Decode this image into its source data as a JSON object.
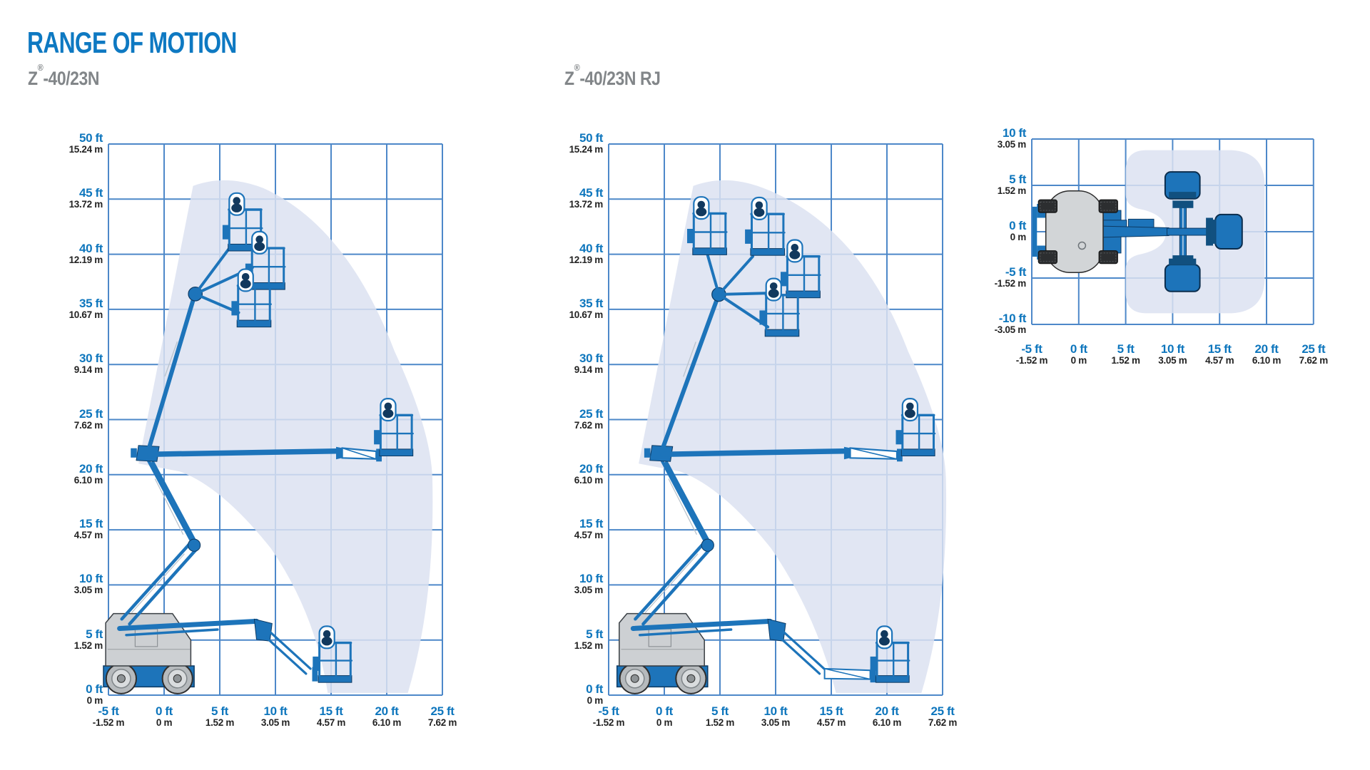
{
  "page": {
    "title": "RANGE OF MOTION"
  },
  "colors": {
    "heading_blue": "#0e79c2",
    "label_blue": "#0e76bd",
    "subtitle_gray": "#828689",
    "grid_blue": "#4d88c9",
    "machine_blue": "#1d74ba",
    "machine_dark": "#0d3a63",
    "silhouette_navy": "#12395e",
    "body_gray": "#cdd0d3",
    "envelope_fill": "#dce2f1"
  },
  "charts": [
    {
      "id": "side_n",
      "subtitle": {
        "pre": "Z",
        "reg": "®",
        "post": "-40/23N"
      },
      "x_ticks": [
        {
          "ft": "-5 ft",
          "m": "-1.52 m"
        },
        {
          "ft": "0 ft",
          "m": "0 m"
        },
        {
          "ft": "5 ft",
          "m": "1.52 m"
        },
        {
          "ft": "10 ft",
          "m": "3.05 m"
        },
        {
          "ft": "15 ft",
          "m": "4.57 m"
        },
        {
          "ft": "20 ft",
          "m": "6.10 m"
        },
        {
          "ft": "25 ft",
          "m": "7.62 m"
        }
      ],
      "y_ticks": [
        {
          "ft": "50 ft",
          "m": "15.24 m"
        },
        {
          "ft": "45 ft",
          "m": "13.72 m"
        },
        {
          "ft": "40 ft",
          "m": "12.19 m"
        },
        {
          "ft": "35 ft",
          "m": "10.67 m"
        },
        {
          "ft": "30 ft",
          "m": "9.14 m"
        },
        {
          "ft": "25 ft",
          "m": "7.62 m"
        },
        {
          "ft": "20 ft",
          "m": "6.10 m"
        },
        {
          "ft": "15 ft",
          "m": "4.57 m"
        },
        {
          "ft": "10 ft",
          "m": "3.05 m"
        },
        {
          "ft": "5 ft",
          "m": "1.52 m"
        },
        {
          "ft": "0 ft",
          "m": "0 m"
        }
      ]
    },
    {
      "id": "side_rj",
      "subtitle": {
        "pre": "Z",
        "reg": "®",
        "post": "-40/23N RJ"
      },
      "x_ticks": [
        {
          "ft": "-5 ft",
          "m": "-1.52 m"
        },
        {
          "ft": "0 ft",
          "m": "0 m"
        },
        {
          "ft": "5 ft",
          "m": "1.52 m"
        },
        {
          "ft": "10 ft",
          "m": "3.05 m"
        },
        {
          "ft": "15 ft",
          "m": "4.57 m"
        },
        {
          "ft": "20 ft",
          "m": "6.10 m"
        },
        {
          "ft": "25 ft",
          "m": "7.62 m"
        }
      ],
      "y_ticks": [
        {
          "ft": "50 ft",
          "m": "15.24 m"
        },
        {
          "ft": "45 ft",
          "m": "13.72 m"
        },
        {
          "ft": "40 ft",
          "m": "12.19 m"
        },
        {
          "ft": "35 ft",
          "m": "10.67 m"
        },
        {
          "ft": "30 ft",
          "m": "9.14 m"
        },
        {
          "ft": "25 ft",
          "m": "7.62 m"
        },
        {
          "ft": "20 ft",
          "m": "6.10 m"
        },
        {
          "ft": "15 ft",
          "m": "4.57 m"
        },
        {
          "ft": "10 ft",
          "m": "3.05 m"
        },
        {
          "ft": "5 ft",
          "m": "1.52 m"
        },
        {
          "ft": "0 ft",
          "m": "0 m"
        }
      ]
    },
    {
      "id": "top_view",
      "x_ticks": [
        {
          "ft": "-5 ft",
          "m": "-1.52 m"
        },
        {
          "ft": "0 ft",
          "m": "0 m"
        },
        {
          "ft": "5 ft",
          "m": "1.52 m"
        },
        {
          "ft": "10 ft",
          "m": "3.05 m"
        },
        {
          "ft": "15 ft",
          "m": "4.57 m"
        },
        {
          "ft": "20 ft",
          "m": "6.10 m"
        },
        {
          "ft": "25 ft",
          "m": "7.62 m"
        }
      ],
      "y_ticks": [
        {
          "ft": "10 ft",
          "m": "3.05 m"
        },
        {
          "ft": "5 ft",
          "m": "1.52 m"
        },
        {
          "ft": "0 ft",
          "m": "0 m"
        },
        {
          "ft": "-5 ft",
          "m": "-1.52 m"
        },
        {
          "ft": "-10 ft",
          "m": "-3.05 m"
        }
      ]
    }
  ]
}
